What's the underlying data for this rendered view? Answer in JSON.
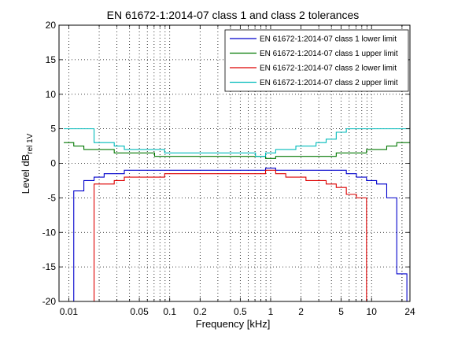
{
  "chart_data": {
    "type": "line",
    "title": "EN 61672-1:2014-07 class 1 and class 2  tolerances",
    "xlabel": "Frequency [kHz]",
    "ylabel": "Level dB",
    "ylabel_sub": "rel 1V",
    "x_scale": "log",
    "xlim": [
      0.008,
      24
    ],
    "ylim": [
      -20,
      20
    ],
    "grid": "dotted",
    "legend_position": "top-right",
    "x_ticks": [
      {
        "value": 0.01,
        "label": "0.01"
      },
      {
        "value": 0.05,
        "label": "0.05"
      },
      {
        "value": 0.1,
        "label": "0.1"
      },
      {
        "value": 0.2,
        "label": "0.2"
      },
      {
        "value": 0.5,
        "label": "0.5"
      },
      {
        "value": 1,
        "label": "1"
      },
      {
        "value": 2,
        "label": "2"
      },
      {
        "value": 5,
        "label": "5"
      },
      {
        "value": 10,
        "label": "10"
      },
      {
        "value": 24,
        "label": "24"
      }
    ],
    "y_ticks": [
      -20,
      -15,
      -10,
      -5,
      0,
      5,
      10,
      15,
      20
    ],
    "series": [
      {
        "name": "EN 61672-1:2014-07 class 1 lower limit",
        "color": "#0000cc",
        "x": [
          0.0112,
          0.0141,
          0.0178,
          0.0224,
          0.0282,
          0.0355,
          0.0447,
          0.0562,
          0.0708,
          0.0891,
          0.112,
          0.141,
          0.178,
          0.224,
          0.282,
          0.355,
          0.447,
          0.562,
          0.708,
          0.891,
          1.122,
          1.413,
          1.778,
          2.239,
          2.818,
          3.548,
          4.467,
          5.623,
          7.079,
          8.913,
          11.22,
          14.13,
          17.78,
          22.39
        ],
        "y": [
          -4,
          -2.5,
          -2,
          -1.5,
          -1.5,
          -1,
          -1,
          -1,
          -1,
          -1,
          -1,
          -1,
          -1,
          -1,
          -1,
          -1,
          -1,
          -1,
          -1,
          -0.7,
          -1,
          -1,
          -1,
          -1,
          -1,
          -1,
          -1,
          -1.5,
          -2,
          -2.5,
          -3,
          -5,
          -16,
          -40
        ],
        "x_start": 0.00891,
        "y_start": -40
      },
      {
        "name": "EN 61672-1:2014-07 class 1 upper limit",
        "color": "#007700",
        "x": [
          0.0112,
          0.0141,
          0.0178,
          0.0224,
          0.0282,
          0.0355,
          0.0447,
          0.0562,
          0.0708,
          0.0891,
          0.112,
          0.141,
          0.178,
          0.224,
          0.282,
          0.355,
          0.447,
          0.562,
          0.708,
          0.891,
          1.122,
          1.413,
          1.778,
          2.239,
          2.818,
          3.548,
          4.467,
          5.623,
          7.079,
          8.913,
          11.22,
          14.13,
          17.78,
          22.39
        ],
        "y": [
          2.5,
          2,
          2,
          2,
          1.5,
          1.5,
          1.5,
          1.5,
          1,
          1,
          1,
          1,
          1,
          1,
          1,
          1,
          1,
          1,
          1,
          0.7,
          1,
          1,
          1,
          1,
          1,
          1,
          1.5,
          1.5,
          1.5,
          2,
          2,
          2.5,
          3,
          3
        ],
        "x_start": 0.00891,
        "y_start": 3
      },
      {
        "name": "EN 61672-1:2014-07 class 2 lower limit",
        "color": "#dd0000",
        "x": [
          0.0178,
          0.0224,
          0.0282,
          0.0355,
          0.0447,
          0.0562,
          0.0708,
          0.0891,
          0.112,
          0.141,
          0.178,
          0.224,
          0.282,
          0.355,
          0.447,
          0.562,
          0.708,
          0.891,
          1.122,
          1.413,
          1.778,
          2.239,
          2.818,
          3.548,
          4.467,
          5.623,
          7.079,
          8.913
        ],
        "y": [
          -3,
          -3,
          -2.5,
          -2,
          -2,
          -2,
          -2,
          -1.5,
          -1.5,
          -1.5,
          -1.5,
          -1.5,
          -1.5,
          -1.5,
          -1.5,
          -1.5,
          -1.5,
          -1,
          -1.5,
          -2,
          -2,
          -2.5,
          -2.5,
          -3,
          -3.5,
          -4.5,
          -5,
          -40
        ],
        "x_start": 0.0141,
        "y_start": -40
      },
      {
        "name": "EN 61672-1:2014-07 class 2 upper limit",
        "color": "#00bbbb",
        "x": [
          0.0112,
          0.0141,
          0.0178,
          0.0224,
          0.0282,
          0.0355,
          0.0447,
          0.0562,
          0.0708,
          0.0891,
          0.112,
          0.141,
          0.178,
          0.224,
          0.282,
          0.355,
          0.447,
          0.562,
          0.708,
          0.891,
          1.122,
          1.413,
          1.778,
          2.239,
          2.818,
          3.548,
          4.467,
          5.623,
          7.079,
          8.913,
          11.22,
          14.13,
          17.78,
          22.39
        ],
        "y": [
          5,
          5,
          3,
          3,
          2.5,
          2,
          2,
          2,
          2,
          1.5,
          1.5,
          1.5,
          1.5,
          1.5,
          1.5,
          1.5,
          1.5,
          1.5,
          1,
          1.5,
          2,
          2,
          2.5,
          2.5,
          3,
          3.5,
          4.5,
          5,
          5,
          5,
          5,
          5,
          5,
          5
        ],
        "x_start": 0.00891,
        "y_start": 5
      }
    ]
  }
}
